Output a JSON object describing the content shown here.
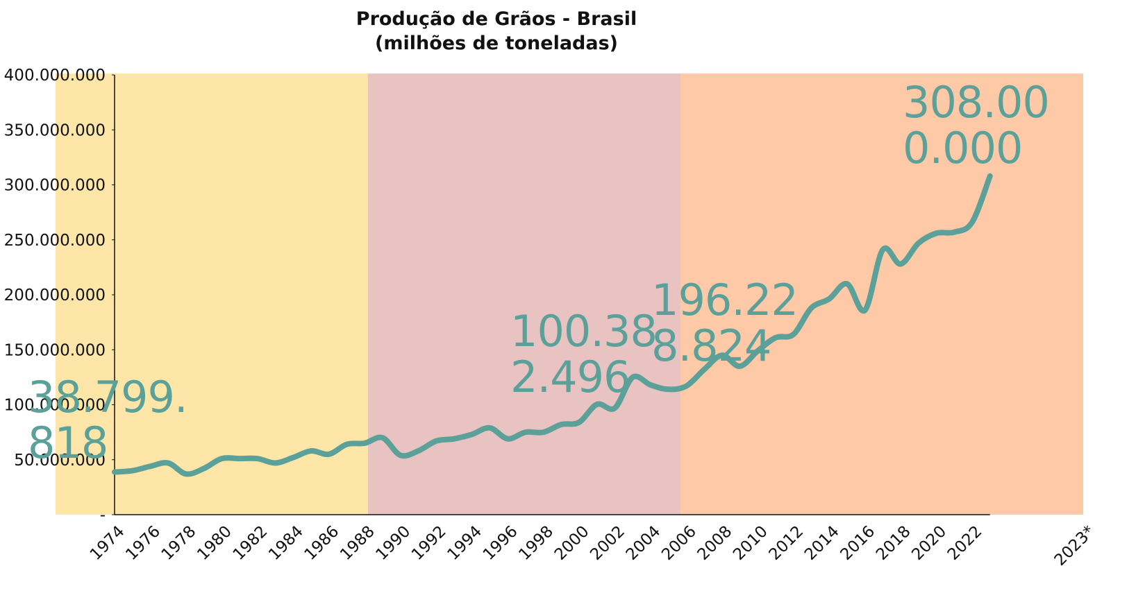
{
  "chart_data": {
    "type": "line",
    "title": "Produção de Grãos - Brasil",
    "subtitle": "(milhões de toneladas)",
    "categories": [
      "1974",
      null,
      "1976",
      null,
      "1978",
      null,
      "1980",
      null,
      "1982",
      null,
      "1984",
      null,
      "1986",
      null,
      "1988",
      null,
      "1990",
      null,
      "1992",
      null,
      "1994",
      null,
      "1996",
      null,
      "1998",
      null,
      "2000",
      null,
      "2002",
      null,
      "2004",
      null,
      "2006",
      null,
      "2008",
      null,
      "2010",
      null,
      "2012",
      null,
      "2014",
      null,
      "2016",
      null,
      "2018",
      null,
      "2020",
      null,
      "2022",
      "2023*"
    ],
    "series": [
      {
        "name": "Produção",
        "color": "#5ba199",
        "values": [
          38799818,
          40000000,
          44000000,
          47000000,
          37000000,
          42000000,
          51000000,
          51000000,
          51000000,
          47000000,
          52000000,
          58000000,
          55000000,
          64000000,
          65000000,
          70000000,
          54000000,
          58000000,
          67000000,
          69000000,
          73000000,
          79000000,
          69000000,
          75000000,
          75000000,
          82000000,
          84000000,
          100382496,
          97000000,
          125000000,
          118000000,
          114000000,
          117000000,
          132000000,
          145000000,
          135000000,
          149000000,
          161000000,
          164000000,
          188000000,
          196228824,
          210000000,
          186000000,
          241000000,
          228000000,
          247000000,
          256000000,
          257000000,
          266000000,
          308000000
        ],
        "value_labels": [
          "38.799.818",
          null,
          null,
          null,
          null,
          null,
          null,
          null,
          null,
          null,
          null,
          null,
          null,
          null,
          null,
          null,
          null,
          null,
          null,
          null,
          null,
          null,
          null,
          null,
          null,
          null,
          null,
          "100.382.496",
          null,
          null,
          null,
          null,
          null,
          null,
          null,
          null,
          null,
          null,
          null,
          null,
          "196.228.824",
          null,
          null,
          null,
          null,
          null,
          null,
          null,
          null,
          "308.000.000"
        ]
      }
    ],
    "ylim": [
      0,
      400000000
    ],
    "yticks": [
      {
        "value": 0,
        "label": "-"
      },
      {
        "value": 50000000,
        "label": "50.000.000"
      },
      {
        "value": 100000000,
        "label": "100.000.000"
      },
      {
        "value": 150000000,
        "label": "150.000.000"
      },
      {
        "value": 200000000,
        "label": "200.000.000"
      },
      {
        "value": 250000000,
        "label": "250.000.000"
      },
      {
        "value": 300000000,
        "label": "300.000.000"
      },
      {
        "value": 350000000,
        "label": "350.000.000"
      },
      {
        "value": 400000000,
        "label": "400.000.000"
      }
    ],
    "grid": false
  }
}
